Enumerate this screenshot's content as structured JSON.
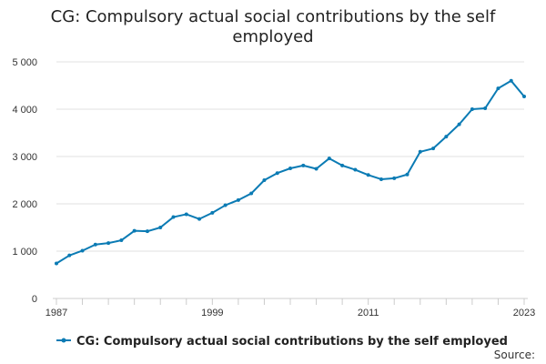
{
  "chart_data": {
    "type": "line",
    "title": "CG: Compulsory actual social contributions by the self employed",
    "xlabel": "",
    "ylabel": "",
    "ylim": [
      0,
      5000
    ],
    "xlim": [
      1987,
      2023
    ],
    "y_ticks": [
      {
        "value": 0,
        "label": "0"
      },
      {
        "value": 1000,
        "label": "1 000"
      },
      {
        "value": 2000,
        "label": "2 000"
      },
      {
        "value": 3000,
        "label": "3 000"
      },
      {
        "value": 4000,
        "label": "4 000"
      },
      {
        "value": 5000,
        "label": "5 000"
      }
    ],
    "x_ticks": [
      {
        "value": 1987,
        "label": "1987"
      },
      {
        "value": 1999,
        "label": "1999"
      },
      {
        "value": 2011,
        "label": "2011"
      },
      {
        "value": 2023,
        "label": "2023"
      }
    ],
    "x_minor_ticks": [
      1987,
      1989,
      1991,
      1993,
      1995,
      1997,
      1999,
      2001,
      2003,
      2005,
      2007,
      2009,
      2011,
      2013,
      2015,
      2017,
      2019,
      2021,
      2023
    ],
    "grid": true,
    "legend_position": "bottom",
    "series": [
      {
        "name": "CG: Compulsory actual social contributions by the self employed",
        "color": "#0b7bb4",
        "x": [
          1987,
          1988,
          1989,
          1990,
          1991,
          1992,
          1993,
          1994,
          1995,
          1996,
          1997,
          1998,
          1999,
          2000,
          2001,
          2002,
          2003,
          2004,
          2005,
          2006,
          2007,
          2008,
          2009,
          2010,
          2011,
          2012,
          2013,
          2014,
          2015,
          2016,
          2017,
          2018,
          2019,
          2020,
          2021,
          2022,
          2023
        ],
        "values": [
          740,
          910,
          1010,
          1140,
          1170,
          1230,
          1430,
          1420,
          1500,
          1720,
          1780,
          1680,
          1810,
          1970,
          2080,
          2220,
          2500,
          2650,
          2750,
          2810,
          2740,
          2960,
          2810,
          2720,
          2610,
          2520,
          2540,
          2620,
          3100,
          3170,
          3420,
          3680,
          4000,
          4020,
          4440,
          4600,
          4270
        ]
      }
    ],
    "source": "Source:"
  }
}
